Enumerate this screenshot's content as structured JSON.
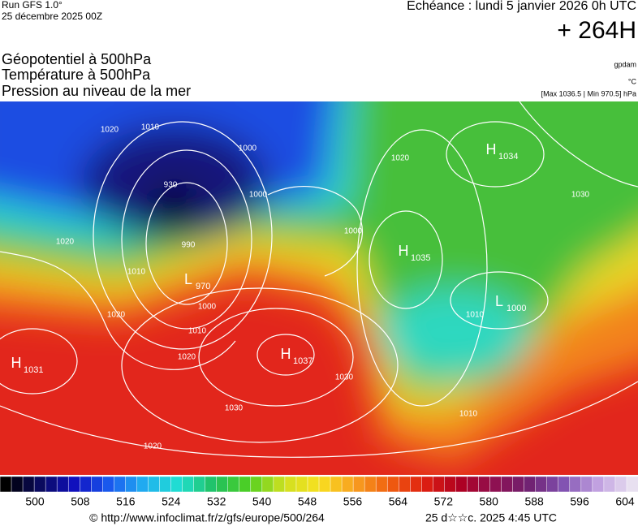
{
  "header": {
    "run": "Run GFS 1.0°",
    "run_date": "25 décembre 2025 00Z",
    "valid": "Echéance : lundi 5 janvier 2026 0h UTC",
    "lead": "+ 264H"
  },
  "titles": [
    "Géopotentiel à 500hPa",
    "Température à 500hPa",
    "Pression au niveau de la mer"
  ],
  "units": {
    "geopotential": "gpdam",
    "temperature": "°C",
    "pressure": "[Max 1036.5 | Min 970.5] hPa"
  },
  "pressure_centers": [
    {
      "kind": "H",
      "value": 1034
    },
    {
      "kind": "H",
      "value": 1035
    },
    {
      "kind": "L",
      "value": 1000
    },
    {
      "kind": "H",
      "value": 1037
    },
    {
      "kind": "H",
      "value": 1031
    },
    {
      "kind": "L",
      "value": 970
    }
  ],
  "isobar_labels": [
    1020,
    1010,
    1000,
    930,
    990,
    1000,
    1000,
    1020,
    1030,
    1010,
    1030,
    1030,
    1020,
    1010,
    1020,
    1010,
    1020,
    1010,
    1020,
    1000
  ],
  "colorbar": {
    "ticks": [
      500,
      508,
      516,
      524,
      532,
      540,
      548,
      556,
      564,
      572,
      580,
      588,
      596,
      604
    ]
  },
  "footer": {
    "credit": "© http://www.infoclimat.fr/z/gfs/europe/500/264",
    "timestamp": "25 d☆☆c. 2025  4:45 UTC"
  }
}
